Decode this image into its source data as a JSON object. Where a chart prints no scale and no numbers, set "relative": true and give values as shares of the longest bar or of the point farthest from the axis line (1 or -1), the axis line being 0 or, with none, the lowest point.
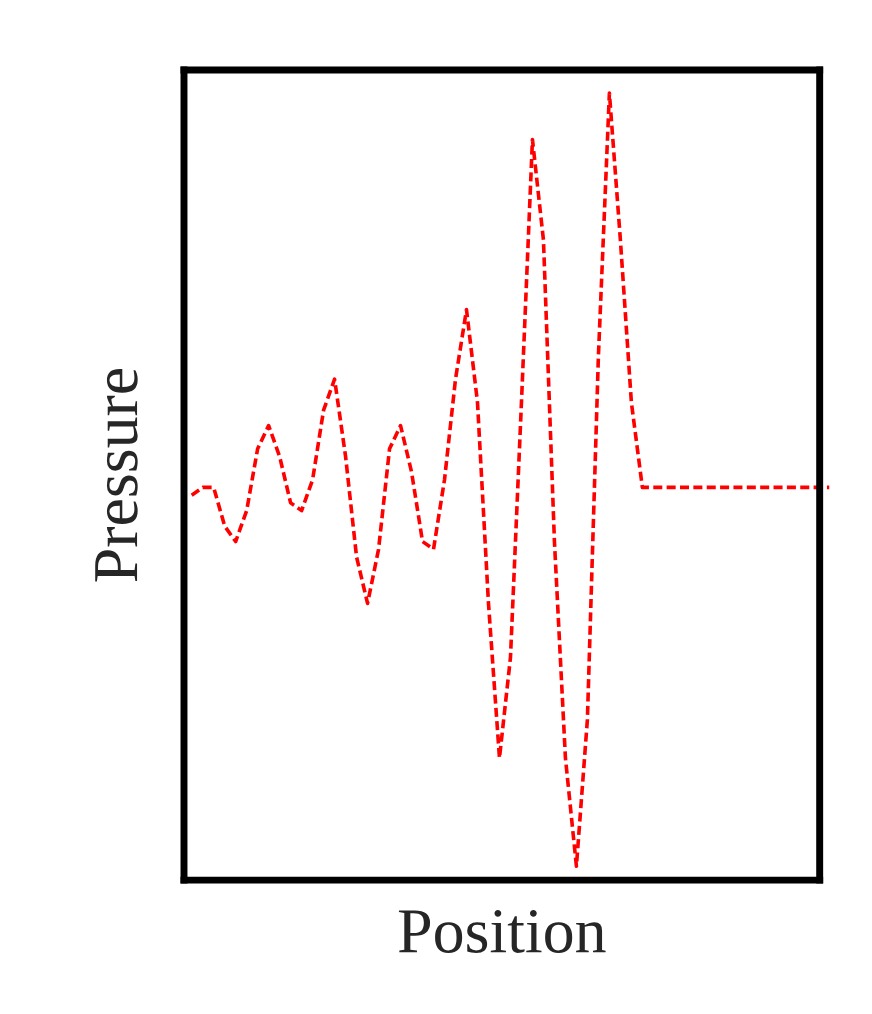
{
  "chart_data": {
    "type": "line",
    "relative": true,
    "xlabel": "Position",
    "ylabel": "Pressure",
    "categories": [
      null,
      null,
      null,
      null,
      null,
      null,
      null,
      null,
      null,
      null,
      null,
      null,
      null,
      null,
      null,
      null,
      null,
      null,
      null,
      null,
      null,
      null,
      null,
      null,
      null,
      null,
      null,
      null,
      null,
      null,
      null,
      null,
      null,
      null,
      null,
      null,
      null,
      null,
      null,
      null,
      null,
      null,
      null,
      null,
      null,
      null,
      null,
      null,
      null,
      null,
      null,
      null,
      null,
      null,
      null,
      null,
      null,
      null,
      null
    ],
    "series": [
      {
        "color": "#ff0000",
        "line_style": "dashed",
        "values": [
          0.48,
          0.49,
          0.49,
          0.44,
          0.42,
          0.46,
          0.54,
          0.57,
          0.53,
          0.47,
          0.46,
          0.5,
          0.59,
          0.63,
          0.53,
          0.4,
          0.34,
          0.41,
          0.54,
          0.57,
          0.51,
          0.42,
          0.41,
          0.5,
          0.63,
          0.72,
          0.6,
          0.34,
          0.14,
          0.27,
          0.6,
          0.94,
          0.81,
          0.42,
          0.14,
          0,
          0.19,
          0.66,
          1,
          0.81,
          0.6,
          0.49,
          0.49,
          0.49,
          0.49,
          0.49,
          0.49,
          0.49,
          0.49,
          0.49,
          0.49,
          0.49,
          0.49,
          0.49,
          0.49,
          0.49,
          0.49,
          0.49,
          0.49
        ]
      }
    ],
    "tick_labels": false
  }
}
